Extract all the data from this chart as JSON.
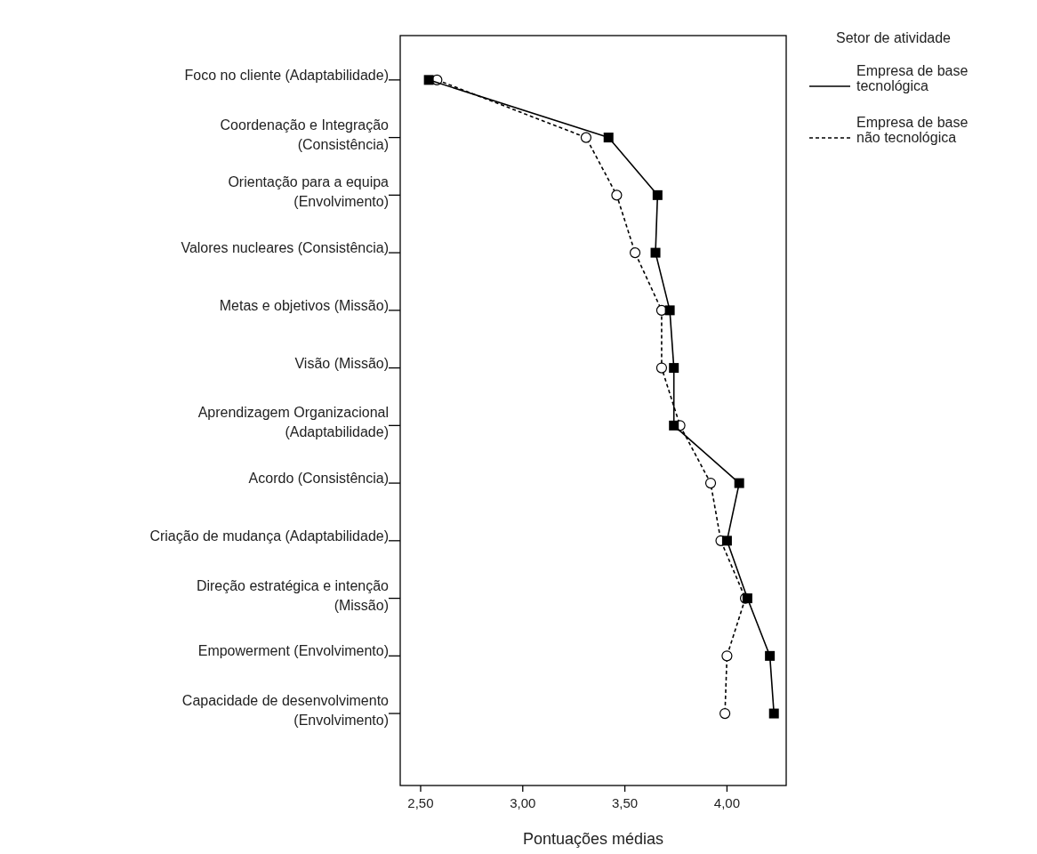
{
  "chart_data": {
    "type": "line",
    "orientation": "horizontal",
    "xlabel": "Pontuações médias",
    "legend_title": "Setor de atividade",
    "legend": "top right",
    "categories": [
      "Foco no cliente (Adaptabilidade)",
      "Coordenação e Integração\n(Consistência)",
      "Orientação para a equipa\n(Envolvimento)",
      "Valores nucleares (Consistência)",
      "Metas e objetivos (Missão)",
      "Visão (Missão)",
      "Aprendizagem Organizacional\n(Adaptabilidade)",
      "Acordo (Consistência)",
      "Criação de mudança (Adaptabilidade)",
      "Direção estratégica e intenção\n(Missão)",
      "Empowerment (Envolvimento)",
      "Capacidade de desenvolvimento\n(Envolvimento)"
    ],
    "xlim": [
      2.4,
      4.29
    ],
    "xticks": [
      {
        "value": 2.5,
        "label": "2,50"
      },
      {
        "value": 3.0,
        "label": "3,00"
      },
      {
        "value": 3.5,
        "label": "3,50"
      },
      {
        "value": 4.0,
        "label": "4,00"
      }
    ],
    "grid": false,
    "series": [
      {
        "name": "Empresa de base\ntecnológica",
        "color": "#000000",
        "line_style": "solid",
        "marker": "square",
        "values": [
          2.54,
          3.42,
          3.66,
          3.65,
          3.72,
          3.74,
          3.74,
          4.06,
          4.0,
          4.1,
          4.21,
          4.23
        ]
      },
      {
        "name": "Empresa de base\nnão tecnológica",
        "color": "#000000",
        "line_style": "dashed",
        "marker": "circle",
        "values": [
          2.58,
          3.31,
          3.46,
          3.55,
          3.68,
          3.68,
          3.77,
          3.92,
          3.97,
          4.09,
          4.0,
          3.99
        ]
      }
    ]
  }
}
